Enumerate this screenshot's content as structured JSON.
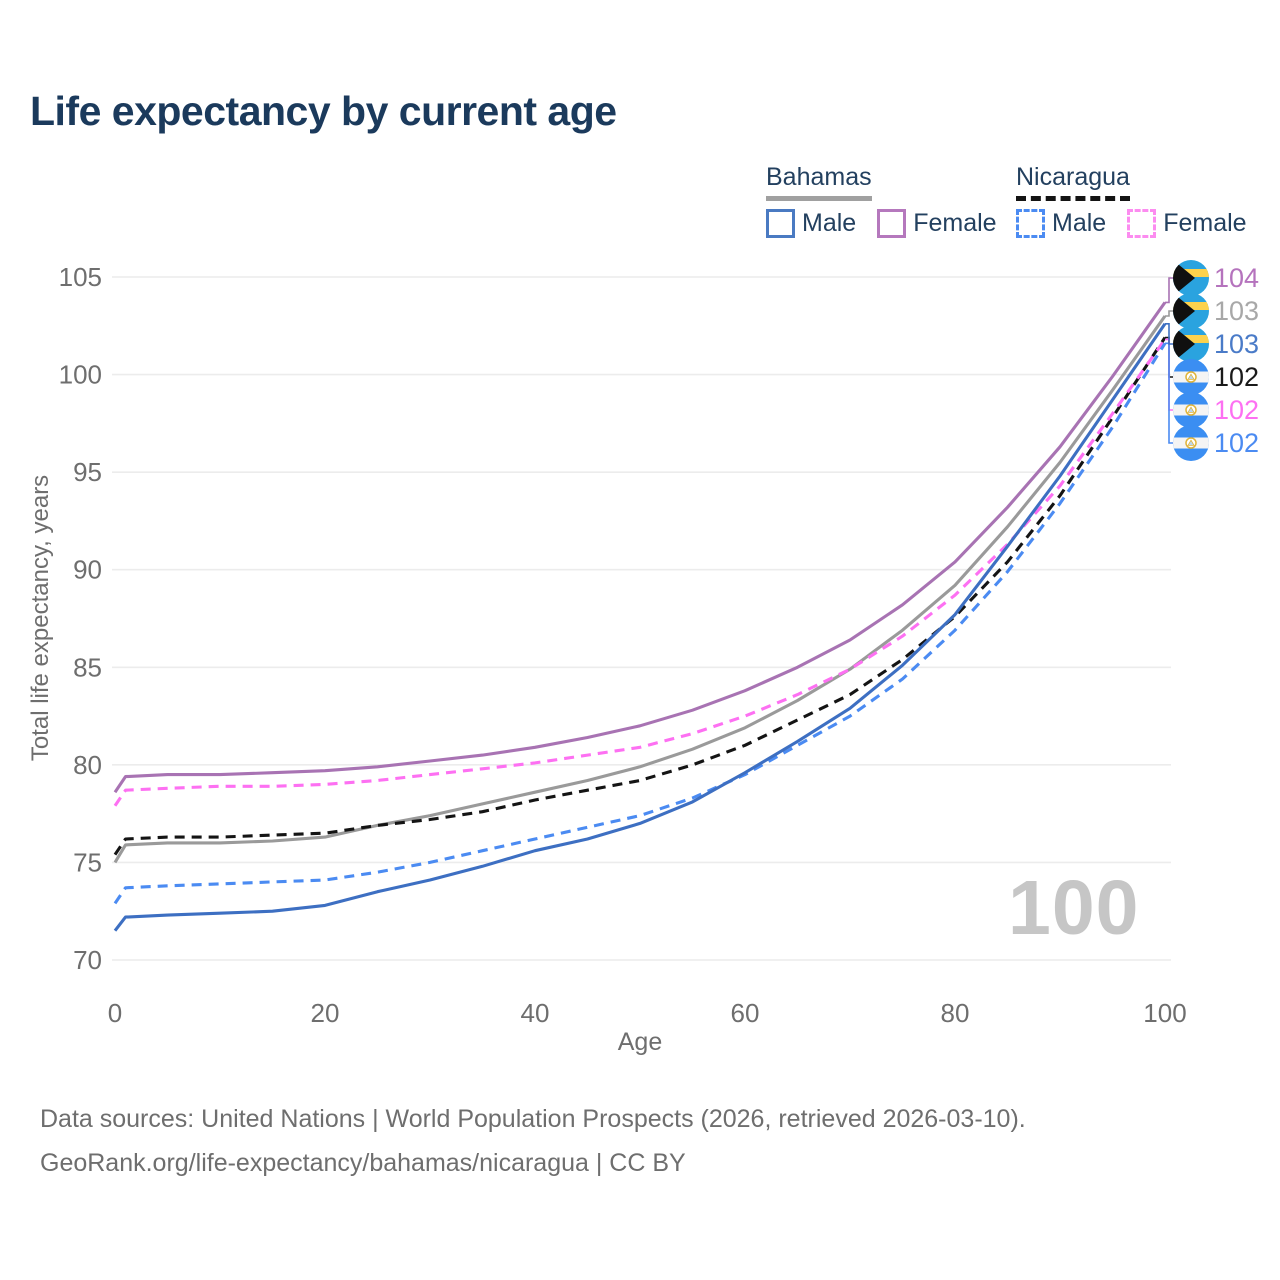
{
  "title": "Life expectancy by current age",
  "legend": {
    "groups": [
      {
        "label": "Bahamas",
        "line_style": "solid",
        "underline_color": "#a0a0a0",
        "items": [
          {
            "label": "Male",
            "color": "#4a7ac2"
          },
          {
            "label": "Female",
            "color": "#b578bd"
          }
        ]
      },
      {
        "label": "Nicaragua",
        "line_style": "dashed",
        "underline_color": "#141414",
        "items": [
          {
            "label": "Male",
            "color": "#4b8bf2"
          },
          {
            "label": "Female",
            "color": "#fc8cf0"
          }
        ]
      }
    ]
  },
  "chart_data": {
    "type": "line",
    "title": "Life expectancy by current age",
    "xlabel": "Age",
    "ylabel": "Total life expectancy, years",
    "xlim": [
      0,
      100
    ],
    "ylim": [
      70,
      105
    ],
    "xticks": [
      0,
      20,
      40,
      60,
      80,
      100
    ],
    "yticks": [
      70,
      75,
      80,
      85,
      90,
      95,
      100,
      105
    ],
    "grid": true,
    "watermark": "100",
    "legend_position": "top-right",
    "ages": [
      0,
      1,
      5,
      10,
      15,
      20,
      25,
      30,
      35,
      40,
      45,
      50,
      55,
      60,
      65,
      70,
      75,
      80,
      85,
      90,
      95,
      100
    ],
    "series": [
      {
        "name": "Bahamas",
        "country": "Bahamas",
        "sex": "both",
        "line_style": "solid",
        "color": "#9a9a9a",
        "label_row": 1,
        "values": [
          75.0,
          75.9,
          76.0,
          76.0,
          76.1,
          76.3,
          76.9,
          77.4,
          78.0,
          78.6,
          79.2,
          79.9,
          80.8,
          81.9,
          83.3,
          84.9,
          86.9,
          89.2,
          92.2,
          95.5,
          99.2,
          103.0
        ]
      },
      {
        "name": "Nicaragua",
        "country": "Nicaragua",
        "sex": "both",
        "line_style": "dashed",
        "color": "#141414",
        "label_row": 3,
        "values": [
          75.4,
          76.2,
          76.3,
          76.3,
          76.4,
          76.5,
          76.9,
          77.2,
          77.6,
          78.2,
          78.7,
          79.2,
          80.0,
          81.0,
          82.3,
          83.6,
          85.4,
          87.6,
          90.4,
          93.8,
          97.8,
          101.9
        ]
      },
      {
        "name": "Bahamas Female",
        "country": "Bahamas",
        "sex": "female",
        "line_style": "solid",
        "color": "#a873b3",
        "label_row": 0,
        "values": [
          78.6,
          79.4,
          79.5,
          79.5,
          79.6,
          79.7,
          79.9,
          80.2,
          80.5,
          80.9,
          81.4,
          82.0,
          82.8,
          83.8,
          85.0,
          86.4,
          88.2,
          90.4,
          93.2,
          96.3,
          99.9,
          103.7
        ]
      },
      {
        "name": "Nicaragua Female",
        "country": "Nicaragua",
        "sex": "female",
        "line_style": "dashed",
        "color": "#fd70f2",
        "label_row": 4,
        "values": [
          77.9,
          78.7,
          78.8,
          78.9,
          78.9,
          79.0,
          79.2,
          79.5,
          79.8,
          80.1,
          80.5,
          80.9,
          81.6,
          82.5,
          83.6,
          84.9,
          86.6,
          88.7,
          91.3,
          94.3,
          98.0,
          101.8
        ]
      },
      {
        "name": "Nicaragua Male",
        "country": "Nicaragua",
        "sex": "male",
        "line_style": "dashed",
        "color": "#4b8bf2",
        "label_row": 5,
        "values": [
          72.9,
          73.7,
          73.8,
          73.9,
          74.0,
          74.1,
          74.5,
          75.0,
          75.6,
          76.2,
          76.8,
          77.4,
          78.3,
          79.5,
          81.0,
          82.5,
          84.4,
          86.9,
          89.9,
          93.4,
          97.3,
          101.6
        ]
      },
      {
        "name": "Bahamas Male",
        "country": "Bahamas",
        "sex": "male",
        "line_style": "solid",
        "color": "#3d6fc2",
        "label_row": 2,
        "values": [
          71.5,
          72.2,
          72.3,
          72.4,
          72.5,
          72.8,
          73.5,
          74.1,
          74.8,
          75.6,
          76.2,
          77.0,
          78.1,
          79.6,
          81.2,
          82.9,
          85.1,
          87.7,
          91.2,
          94.8,
          98.7,
          102.6
        ]
      }
    ],
    "end_labels": [
      {
        "value": "104",
        "color": "#b573bd",
        "flag": "bahamas"
      },
      {
        "value": "103",
        "color": "#a8a8a8",
        "flag": "bahamas"
      },
      {
        "value": "103",
        "color": "#4a7bc8",
        "flag": "bahamas"
      },
      {
        "value": "102",
        "color": "#1a1a1a",
        "flag": "nicaragua"
      },
      {
        "value": "102",
        "color": "#fd70f2",
        "flag": "nicaragua"
      },
      {
        "value": "102",
        "color": "#4b8bf2",
        "flag": "nicaragua"
      }
    ]
  },
  "icons": {
    "bahamas_flag": {
      "aqua": "#2aa3df",
      "gold": "#fdd24c",
      "black": "#101010"
    },
    "nicaragua_flag": {
      "blue": "#3b8ef2",
      "white": "#f4f4f4",
      "gold": "#e0b43a"
    }
  },
  "footer": {
    "line1": "Data sources: United Nations | World Population Prospects (2026, retrieved 2026-03-10).",
    "line2": "GeoRank.org/life-expectancy/bahamas/nicaragua | CC BY"
  },
  "colors": {
    "title_text": "#1b3a5c",
    "legend_text": "#23405f",
    "axis_text": "#6e6e6e",
    "gridline": "#ececec",
    "watermark": "#c6c6c6"
  }
}
